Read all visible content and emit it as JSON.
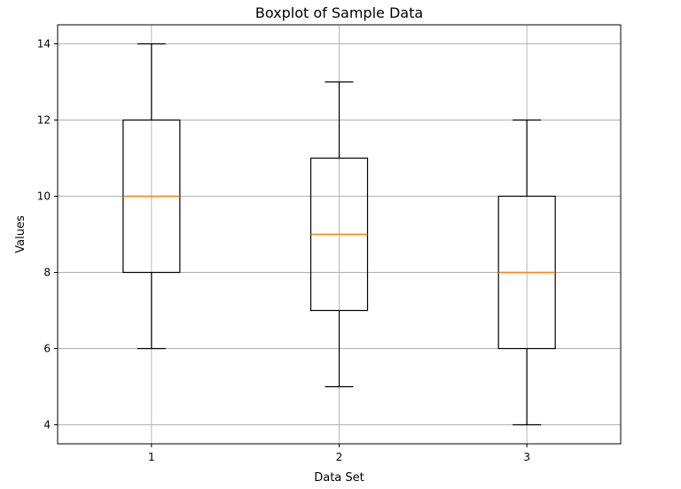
{
  "chart_data": {
    "type": "boxplot",
    "title": "Boxplot of Sample Data",
    "xlabel": "Data Set",
    "ylabel": "Values",
    "categories": [
      "1",
      "2",
      "3"
    ],
    "boxes": [
      {
        "category": "1",
        "whisker_low": 6,
        "q1": 8,
        "median": 10,
        "q3": 12,
        "whisker_high": 14
      },
      {
        "category": "2",
        "whisker_low": 5,
        "q1": 7,
        "median": 9,
        "q3": 11,
        "whisker_high": 13
      },
      {
        "category": "3",
        "whisker_low": 4,
        "q1": 6,
        "median": 8,
        "q3": 10,
        "whisker_high": 12
      }
    ],
    "x_ticks": [
      "1",
      "2",
      "3"
    ],
    "y_ticks": [
      4,
      6,
      8,
      10,
      12,
      14
    ],
    "xlim": [
      0.5,
      3.5
    ],
    "ylim": [
      3.5,
      14.5
    ],
    "grid": true,
    "colors": {
      "box": "#000000",
      "median": "#ff7f0e",
      "grid": "#b0b0b0",
      "frame": "#000000"
    }
  }
}
